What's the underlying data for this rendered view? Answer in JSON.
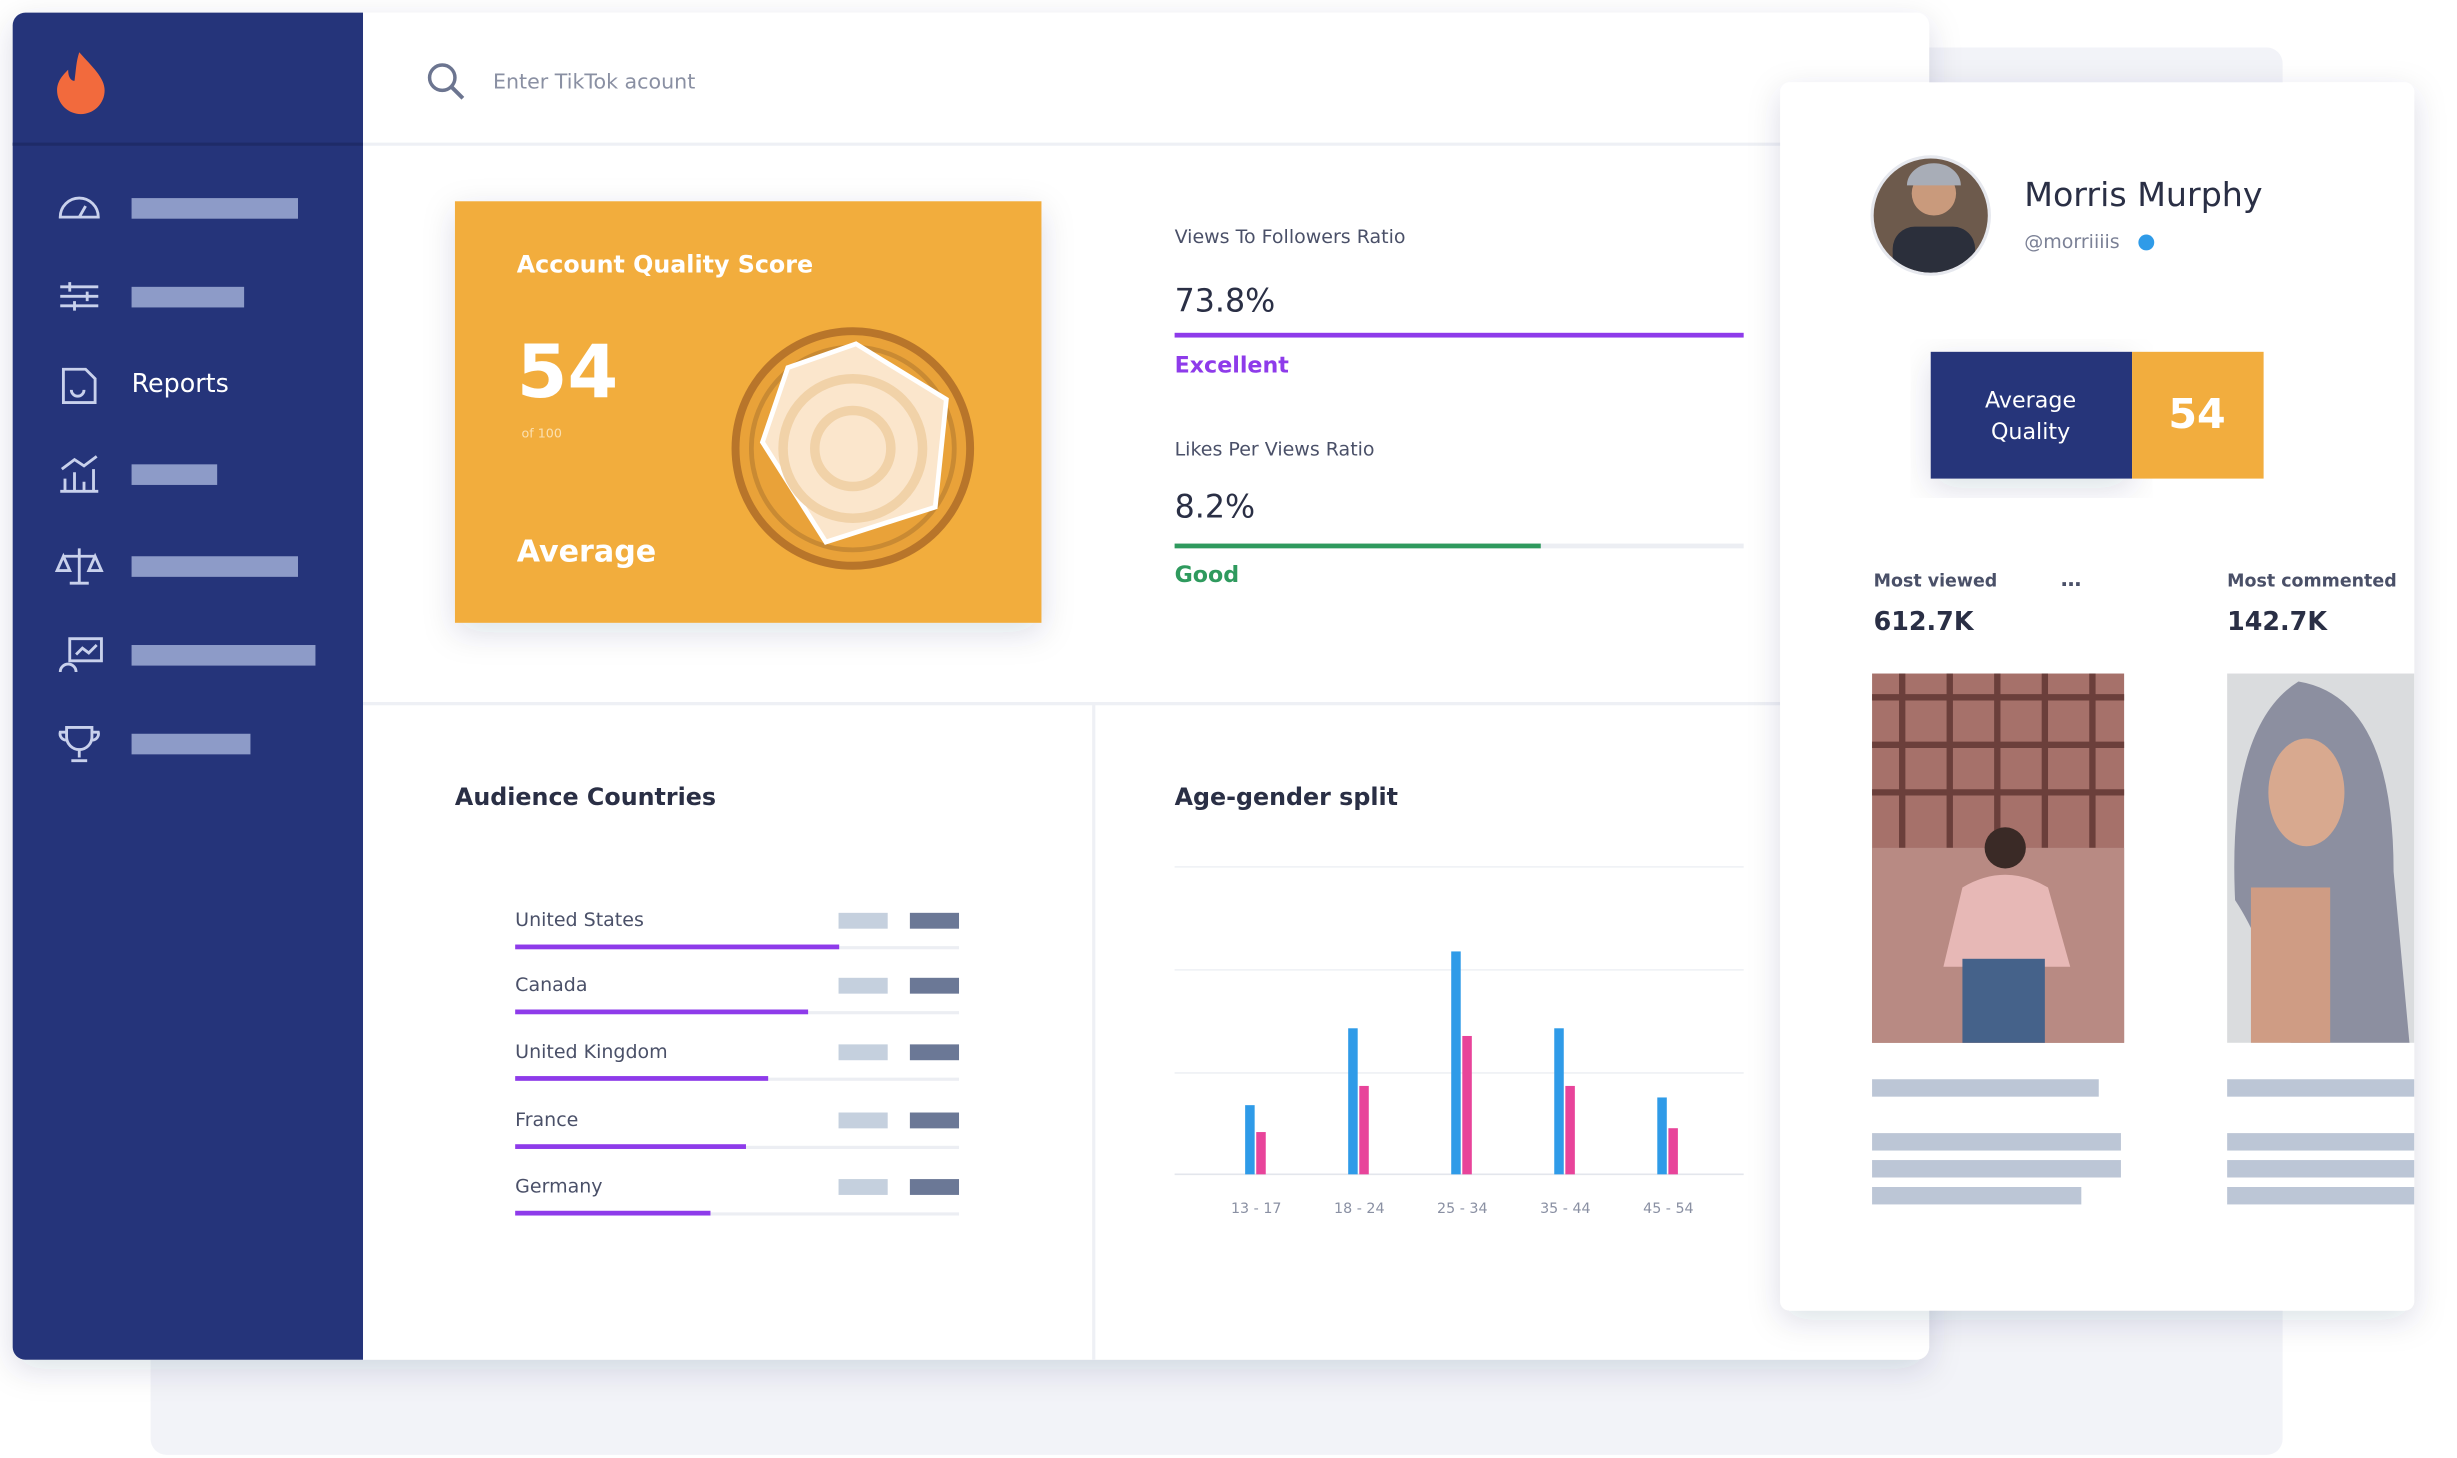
{
  "sidebar": {
    "active_item": "Reports"
  },
  "search": {
    "placeholder": "Enter TikTok acount"
  },
  "quality_card": {
    "title": "Account Quality Score",
    "score": 54,
    "scale": "of 100",
    "rating": "Average"
  },
  "metrics": [
    {
      "label": "Views To Followers Ratio",
      "value": "73.8%",
      "rating": "Excellent"
    },
    {
      "label": "Likes Per Views Ratio",
      "value": "8.2%",
      "rating": "Good"
    }
  ],
  "audience_countries": {
    "title": "Audience Countries",
    "countries": [
      "United States",
      "Canada",
      "United Kingdom",
      "France",
      "Germany"
    ],
    "values": [
      73,
      66,
      57,
      52,
      44
    ],
    "xlim": [
      0,
      100
    ]
  },
  "chart_data": {
    "type": "bar",
    "title": "Age-gender split",
    "categories": [
      "13 - 17",
      "18 - 24",
      "25 - 34",
      "35 - 44",
      "45 - 54"
    ],
    "series": [
      {
        "color": "#2f9be8",
        "values": [
          9,
          19,
          29,
          19,
          10
        ]
      },
      {
        "color": "#e8449a",
        "values": [
          5.5,
          11.5,
          18,
          11.5,
          6
        ]
      }
    ],
    "ylim": [
      0,
      40
    ]
  },
  "profile": {
    "name": "Morris Murphy",
    "handle": "@morriiiis",
    "quality_label_lines": [
      "Average",
      "Quality"
    ],
    "quality_score": 54,
    "most_viewed": {
      "label": "Most viewed",
      "value": "612.7K"
    },
    "most_commented": {
      "label": "Most commented",
      "value": "142.7K"
    }
  }
}
